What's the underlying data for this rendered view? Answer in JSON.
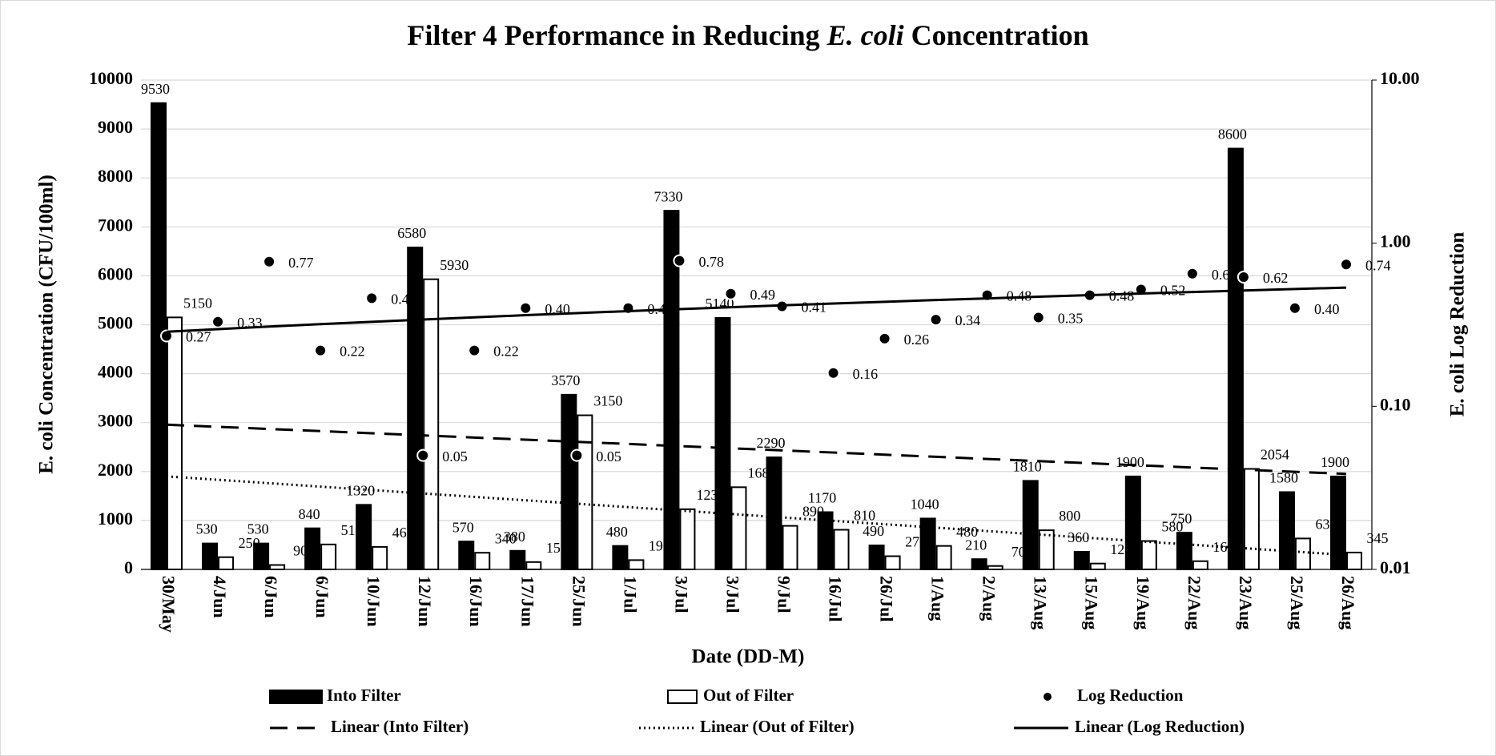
{
  "chart_data": {
    "type": "bar",
    "title": [
      {
        "text": "Filter 4 Performance in Reducing ",
        "italic": false
      },
      {
        "text": "E. coli",
        "italic": true
      },
      {
        "text": " Concentration",
        "italic": false
      }
    ],
    "x_label": "Date (DD-M)",
    "y_label": "E. coli Concentration (CFU/100ml)",
    "y2_label": "E. coli Log Reduction",
    "categories": [
      "30/May",
      "4/Jun",
      "6/Jun",
      "6/Jun",
      "10/Jun",
      "12/Jun",
      "16/Jun",
      "17/Jun",
      "25/Jun",
      "1/Jul",
      "3/Jul",
      "3/Jul",
      "9/Jul",
      "16/Jul",
      "26/Jul",
      "1/Aug",
      "2/Aug",
      "13/Aug",
      "15/Aug",
      "19/Aug",
      "22/Aug",
      "23/Aug",
      "25/Aug",
      "26/Aug"
    ],
    "series": [
      {
        "name": "Into Filter",
        "type": "bar",
        "color": "#000000",
        "values": [
          9530,
          530,
          530,
          840,
          1320,
          6580,
          570,
          380,
          3570,
          480,
          7330,
          5140,
          2290,
          1170,
          490,
          1040,
          210,
          1810,
          360,
          1900,
          750,
          8600,
          1580,
          1900
        ]
      },
      {
        "name": "Out of Filter",
        "type": "bar",
        "color": "#ffffff",
        "values": [
          5150,
          250,
          90,
          510,
          460,
          5930,
          340,
          150,
          3150,
          190,
          1230,
          1680,
          890,
          810,
          270,
          480,
          70,
          800,
          120,
          580,
          168,
          2054,
          632,
          345
        ]
      },
      {
        "name": "Log Reduction",
        "type": "scatter",
        "axis": "y2",
        "color": "#000000",
        "values": [
          0.27,
          0.33,
          0.77,
          0.22,
          0.46,
          0.05,
          0.22,
          0.4,
          0.05,
          0.4,
          0.78,
          0.49,
          0.41,
          0.16,
          0.26,
          0.34,
          0.48,
          0.35,
          0.48,
          0.52,
          0.65,
          0.62,
          0.4,
          0.74
        ],
        "value_labels": [
          "0.27",
          "0.33",
          "0.77",
          "0.22",
          "0.46",
          "0.05",
          "0.22",
          "0.40",
          "0.05",
          "0.40",
          "0.78",
          "0.49",
          "0.41",
          "0.16",
          "0.26",
          "0.34",
          "0.48",
          "0.35",
          "0.48",
          "0.52",
          "0.65",
          "0.62",
          "0.40",
          "0.74"
        ]
      }
    ],
    "trendlines": [
      {
        "name": "Linear (Into Filter)",
        "series": 0,
        "dash": "22 12"
      },
      {
        "name": "Linear (Out of Filter)",
        "series": 1,
        "dash": "2 4"
      },
      {
        "name": "Linear (Log Reduction)",
        "series": 2,
        "dash": "none"
      }
    ],
    "ylim": [
      0,
      10000
    ],
    "yticks": [
      0,
      1000,
      2000,
      3000,
      4000,
      5000,
      6000,
      7000,
      8000,
      9000,
      10000
    ],
    "y2lim": [
      0.01,
      10
    ],
    "y2ticks": [
      {
        "value": 0.01,
        "label": "0.01"
      },
      {
        "value": 0.1,
        "label": "0.10"
      },
      {
        "value": 1,
        "label": "1.00"
      },
      {
        "value": 10,
        "label": "10.00"
      }
    ],
    "y2_log": true,
    "grid": true,
    "legend": "bottom"
  }
}
